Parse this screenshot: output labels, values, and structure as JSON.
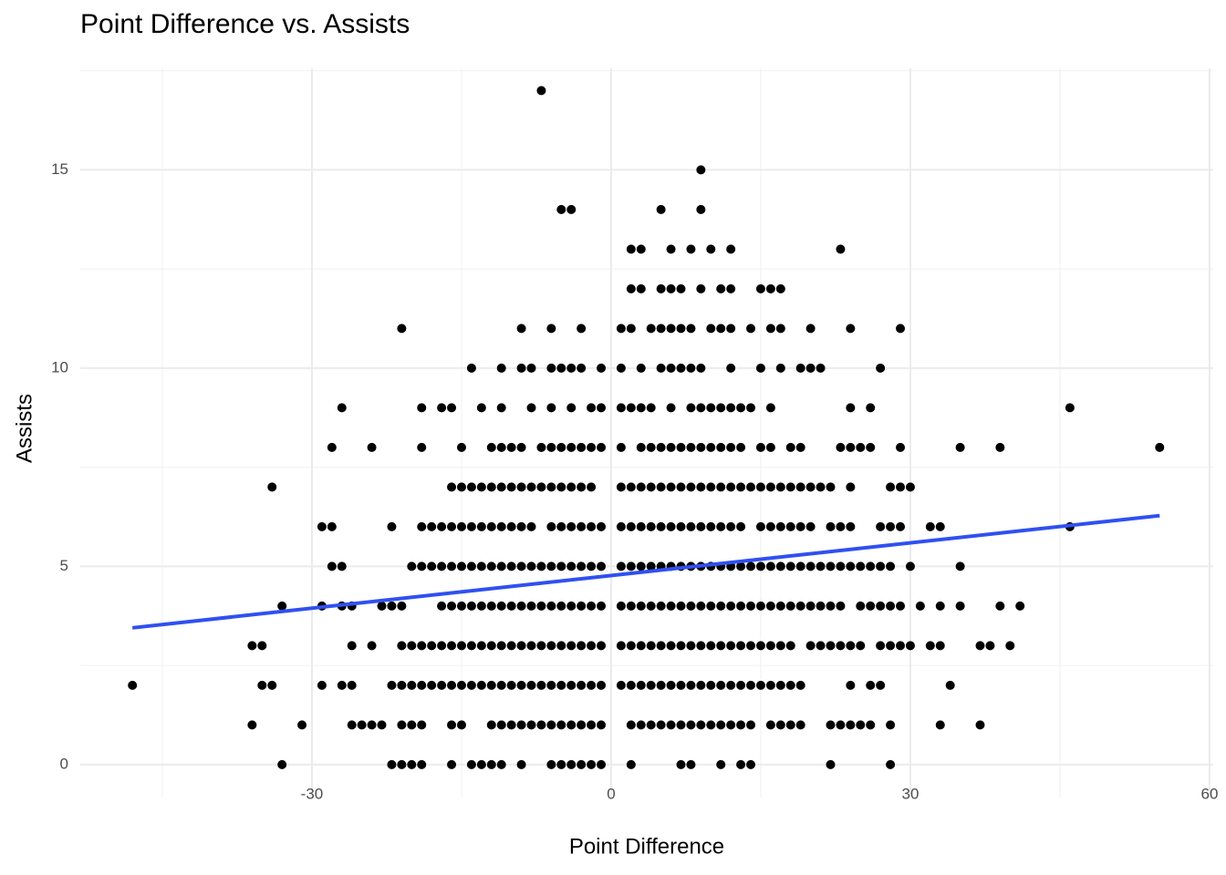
{
  "chart_data": {
    "type": "scatter",
    "title": "Point Difference vs. Assists",
    "x_label": "Point Difference",
    "y_label": "Assists",
    "xlim": [
      -53.23,
      60.37
    ],
    "ylim": [
      -0.83,
      17.56
    ],
    "xticks": [
      -30,
      0,
      30,
      60
    ],
    "yticks": [
      0,
      5,
      10,
      15
    ],
    "x_minor_ticks": [
      -45,
      -15,
      15,
      45
    ],
    "y_minor_ticks": [
      2.5,
      7.5,
      12.5,
      17.5
    ],
    "grid": true,
    "color": "#000000",
    "rows": [
      {
        "y": 17,
        "x": [
          -7
        ]
      },
      {
        "y": 15,
        "x": [
          9
        ]
      },
      {
        "y": 14,
        "x": [
          -5,
          -4,
          5,
          9
        ]
      },
      {
        "y": 13,
        "x": [
          2,
          3,
          6,
          8,
          10,
          12,
          23
        ]
      },
      {
        "y": 12,
        "x": [
          2,
          3,
          5,
          6,
          7,
          9,
          11,
          12,
          15,
          16,
          17
        ]
      },
      {
        "y": 11,
        "x": [
          -21,
          -9,
          -6,
          -3,
          1,
          2,
          4,
          5,
          6,
          7,
          8,
          10,
          11,
          12,
          14,
          16,
          17,
          20,
          24,
          29
        ]
      },
      {
        "y": 10,
        "x": [
          -14,
          -11,
          -9,
          -8,
          -6,
          -5,
          -4,
          -3,
          -1,
          1,
          3,
          5,
          6,
          7,
          8,
          9,
          12,
          15,
          17,
          19,
          20,
          21,
          27
        ]
      },
      {
        "y": 9,
        "x": [
          -27,
          -19,
          -17,
          -16,
          -13,
          -11,
          -8,
          -6,
          -4,
          -2,
          -1,
          1,
          2,
          3,
          4,
          6,
          8,
          9,
          10,
          11,
          12,
          13,
          14,
          16,
          24,
          26,
          46
        ]
      },
      {
        "y": 8,
        "x": [
          -28,
          -24,
          -19,
          -15,
          -12,
          -11,
          -10,
          -9,
          -7,
          -6,
          -5,
          -4,
          -3,
          -2,
          -1,
          1,
          3,
          4,
          5,
          6,
          7,
          8,
          9,
          10,
          11,
          12,
          13,
          15,
          16,
          18,
          19,
          23,
          24,
          25,
          26,
          29,
          35,
          39,
          55
        ]
      },
      {
        "y": 7,
        "x": [
          -34,
          -16,
          -15,
          -14,
          -13,
          -12,
          -11,
          -10,
          -9,
          -8,
          -7,
          -6,
          -5,
          -4,
          -3,
          -2,
          1,
          2,
          3,
          4,
          5,
          6,
          7,
          8,
          9,
          10,
          11,
          12,
          13,
          14,
          15,
          16,
          17,
          18,
          19,
          20,
          21,
          22,
          24,
          28,
          29,
          30
        ]
      },
      {
        "y": 6,
        "x": [
          -29,
          -28,
          -22,
          -19,
          -18,
          -17,
          -16,
          -15,
          -14,
          -13,
          -12,
          -11,
          -10,
          -9,
          -8,
          -6,
          -5,
          -4,
          -3,
          -2,
          -1,
          1,
          2,
          3,
          4,
          5,
          6,
          7,
          8,
          9,
          10,
          11,
          12,
          13,
          15,
          16,
          17,
          18,
          19,
          20,
          22,
          23,
          24,
          27,
          28,
          29,
          32,
          33,
          46
        ]
      },
      {
        "y": 5,
        "x": [
          -28,
          -27,
          -20,
          -19,
          -18,
          -17,
          -16,
          -15,
          -14,
          -13,
          -12,
          -11,
          -10,
          -9,
          -8,
          -7,
          -6,
          -5,
          -4,
          -3,
          -2,
          -1,
          1,
          2,
          3,
          4,
          5,
          6,
          7,
          8,
          9,
          10,
          11,
          12,
          13,
          14,
          15,
          16,
          17,
          18,
          19,
          20,
          21,
          22,
          23,
          24,
          25,
          26,
          27,
          28,
          30,
          35
        ]
      },
      {
        "y": 4,
        "x": [
          -33,
          -29,
          -27,
          -26,
          -23,
          -22,
          -21,
          -17,
          -16,
          -15,
          -14,
          -13,
          -12,
          -11,
          -10,
          -9,
          -8,
          -7,
          -6,
          -5,
          -4,
          -3,
          -2,
          -1,
          1,
          2,
          3,
          4,
          5,
          6,
          7,
          8,
          9,
          10,
          11,
          12,
          13,
          14,
          15,
          16,
          17,
          18,
          19,
          20,
          21,
          22,
          23,
          25,
          26,
          27,
          28,
          29,
          31,
          33,
          35,
          39,
          41
        ]
      },
      {
        "y": 3,
        "x": [
          -36,
          -35,
          -26,
          -24,
          -21,
          -20,
          -19,
          -18,
          -17,
          -16,
          -15,
          -14,
          -13,
          -12,
          -11,
          -10,
          -9,
          -8,
          -7,
          -6,
          -5,
          -4,
          -3,
          -2,
          -1,
          1,
          2,
          3,
          4,
          5,
          6,
          7,
          8,
          9,
          10,
          11,
          12,
          13,
          14,
          15,
          16,
          17,
          18,
          20,
          21,
          22,
          23,
          24,
          25,
          27,
          28,
          29,
          30,
          32,
          33,
          37,
          38,
          40
        ]
      },
      {
        "y": 2,
        "x": [
          -48,
          -35,
          -34,
          -29,
          -27,
          -26,
          -22,
          -21,
          -20,
          -19,
          -18,
          -17,
          -16,
          -15,
          -14,
          -13,
          -12,
          -11,
          -10,
          -9,
          -8,
          -7,
          -6,
          -5,
          -4,
          -3,
          -2,
          -1,
          1,
          2,
          3,
          4,
          5,
          6,
          7,
          8,
          9,
          10,
          11,
          12,
          13,
          14,
          15,
          16,
          17,
          18,
          19,
          24,
          26,
          27,
          34
        ]
      },
      {
        "y": 1,
        "x": [
          -36,
          -31,
          -26,
          -25,
          -24,
          -23,
          -21,
          -20,
          -19,
          -16,
          -15,
          -12,
          -11,
          -10,
          -9,
          -8,
          -7,
          -6,
          -5,
          -4,
          -3,
          -2,
          -1,
          2,
          3,
          4,
          5,
          6,
          7,
          8,
          9,
          10,
          11,
          12,
          13,
          14,
          16,
          17,
          18,
          19,
          22,
          23,
          24,
          25,
          26,
          28,
          33,
          37
        ]
      },
      {
        "y": 0,
        "x": [
          -33,
          -22,
          -21,
          -20,
          -19,
          -16,
          -14,
          -13,
          -12,
          -11,
          -9,
          -6,
          -5,
          -4,
          -3,
          -2,
          -1,
          2,
          7,
          8,
          11,
          13,
          14,
          22,
          28
        ]
      }
    ],
    "trend": {
      "x": [
        -48,
        55
      ],
      "values": [
        3.45,
        6.28
      ],
      "color": "#3050f0"
    }
  }
}
